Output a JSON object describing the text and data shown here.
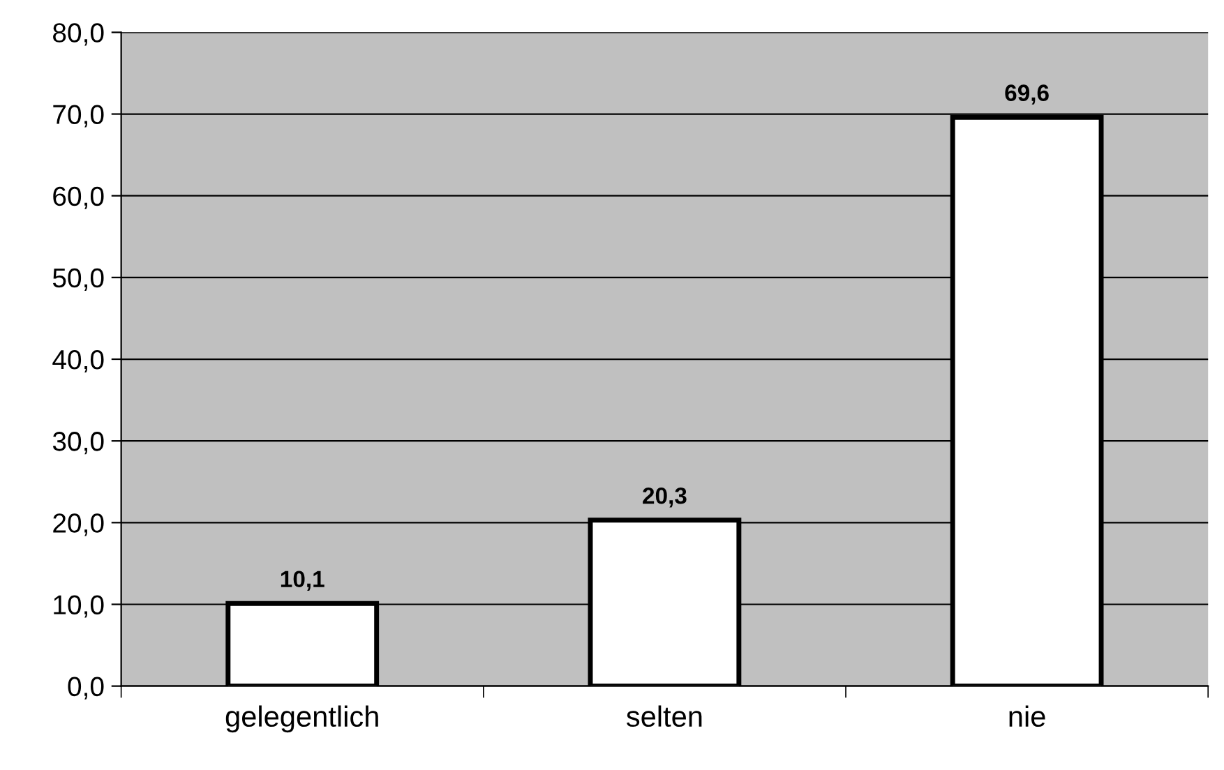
{
  "chart_data": {
    "type": "bar",
    "categories": [
      "gelegentlich",
      "selten",
      "nie"
    ],
    "values": [
      10.1,
      20.3,
      69.6
    ],
    "value_labels": [
      "10,1",
      "20,3",
      "69,6"
    ],
    "color": "#ffffff",
    "ylim": [
      0,
      80
    ],
    "yticks": [
      {
        "value": 0,
        "label": "0,0"
      },
      {
        "value": 10,
        "label": "10,0"
      },
      {
        "value": 20,
        "label": "20,0"
      },
      {
        "value": 30,
        "label": "30,0"
      },
      {
        "value": 40,
        "label": "40,0"
      },
      {
        "value": 50,
        "label": "50,0"
      },
      {
        "value": 60,
        "label": "60,0"
      },
      {
        "value": 70,
        "label": "70,0"
      },
      {
        "value": 80,
        "label": "80,0"
      }
    ],
    "grid": "y",
    "legend": false
  }
}
